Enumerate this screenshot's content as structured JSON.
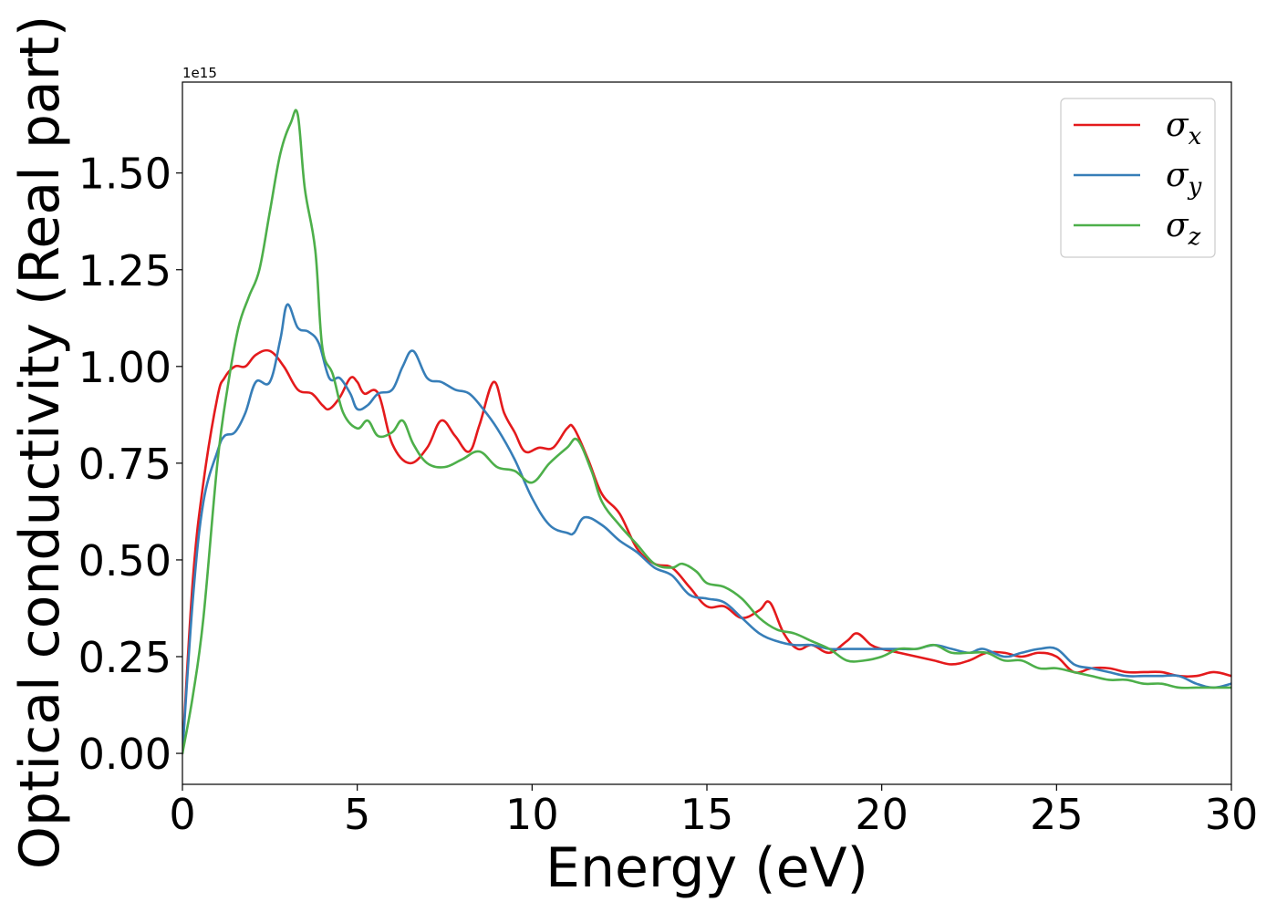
{
  "chart_data": {
    "type": "line",
    "title": "",
    "xlabel": "Energy (eV)",
    "ylabel": "Optical conductivity (Real part)",
    "y_offset_label": "1e15",
    "xlim": [
      0,
      30
    ],
    "ylim": [
      -0.08,
      1.735
    ],
    "xticks": [
      0,
      5,
      10,
      15,
      20,
      25,
      30
    ],
    "xtick_labels": [
      "0",
      "5",
      "10",
      "15",
      "20",
      "25",
      "30"
    ],
    "yticks": [
      0.0,
      0.25,
      0.5,
      0.75,
      1.0,
      1.25,
      1.5
    ],
    "ytick_labels": [
      "0.00",
      "0.25",
      "0.50",
      "0.75",
      "1.00",
      "1.25",
      "1.50"
    ],
    "grid": false,
    "legend_position": "top-right",
    "series": [
      {
        "name": "σx",
        "symbol": "σ",
        "subscript": "x",
        "color": "#e41a1c",
        "x": [
          0,
          0.3,
          0.6,
          1.0,
          1.2,
          1.5,
          1.8,
          2.1,
          2.5,
          2.9,
          3.3,
          3.7,
          4.0,
          4.2,
          4.5,
          4.8,
          5.0,
          5.2,
          5.6,
          6.0,
          6.5,
          7.0,
          7.4,
          7.8,
          8.2,
          8.5,
          8.9,
          9.2,
          9.5,
          9.8,
          10.2,
          10.6,
          11.0,
          11.2,
          11.6,
          12.0,
          12.5,
          13.0,
          13.5,
          14.0,
          14.5,
          15.0,
          15.5,
          16.0,
          16.5,
          16.8,
          17.2,
          17.6,
          18.0,
          18.5,
          19.0,
          19.3,
          19.7,
          20.0,
          20.5,
          21.0,
          21.5,
          22.0,
          22.5,
          23.0,
          23.5,
          24.0,
          24.5,
          25.0,
          25.5,
          26.0,
          26.5,
          27.0,
          27.5,
          28.0,
          28.5,
          29.0,
          29.5,
          30.0
        ],
        "y": [
          0.0,
          0.45,
          0.7,
          0.92,
          0.97,
          1.0,
          1.0,
          1.03,
          1.04,
          1.0,
          0.94,
          0.93,
          0.9,
          0.89,
          0.92,
          0.97,
          0.96,
          0.93,
          0.93,
          0.8,
          0.75,
          0.79,
          0.86,
          0.82,
          0.78,
          0.85,
          0.96,
          0.88,
          0.83,
          0.78,
          0.79,
          0.79,
          0.84,
          0.84,
          0.76,
          0.67,
          0.62,
          0.53,
          0.49,
          0.48,
          0.43,
          0.38,
          0.38,
          0.35,
          0.37,
          0.39,
          0.31,
          0.27,
          0.28,
          0.26,
          0.29,
          0.31,
          0.28,
          0.27,
          0.26,
          0.25,
          0.24,
          0.23,
          0.24,
          0.26,
          0.26,
          0.25,
          0.26,
          0.25,
          0.21,
          0.22,
          0.22,
          0.21,
          0.21,
          0.21,
          0.2,
          0.2,
          0.21,
          0.2
        ]
      },
      {
        "name": "σy",
        "symbol": "σ",
        "subscript": "y",
        "color": "#377eb8",
        "x": [
          0,
          0.3,
          0.6,
          1.0,
          1.2,
          1.5,
          1.8,
          2.1,
          2.5,
          2.8,
          3.0,
          3.3,
          3.6,
          3.9,
          4.2,
          4.5,
          4.8,
          5.0,
          5.3,
          5.6,
          6.0,
          6.3,
          6.6,
          7.0,
          7.4,
          7.8,
          8.2,
          8.6,
          9.0,
          9.5,
          10.0,
          10.5,
          11.0,
          11.2,
          11.5,
          12.0,
          12.5,
          13.0,
          13.5,
          14.0,
          14.5,
          15.0,
          15.5,
          16.0,
          16.5,
          17.0,
          17.5,
          18.0,
          18.5,
          19.0,
          19.5,
          20.0,
          20.5,
          21.0,
          21.5,
          22.0,
          22.5,
          22.9,
          23.5,
          24.0,
          24.5,
          25.0,
          25.5,
          26.0,
          26.5,
          27.0,
          27.5,
          28.0,
          28.5,
          29.0,
          29.5,
          30.0
        ],
        "y": [
          0.0,
          0.4,
          0.65,
          0.78,
          0.82,
          0.83,
          0.88,
          0.96,
          0.96,
          1.07,
          1.16,
          1.1,
          1.09,
          1.06,
          0.97,
          0.97,
          0.93,
          0.89,
          0.9,
          0.93,
          0.94,
          1.0,
          1.04,
          0.97,
          0.96,
          0.94,
          0.93,
          0.89,
          0.84,
          0.76,
          0.66,
          0.59,
          0.57,
          0.57,
          0.61,
          0.59,
          0.55,
          0.52,
          0.48,
          0.46,
          0.41,
          0.4,
          0.39,
          0.35,
          0.31,
          0.29,
          0.28,
          0.28,
          0.27,
          0.27,
          0.27,
          0.27,
          0.27,
          0.27,
          0.28,
          0.27,
          0.26,
          0.27,
          0.25,
          0.26,
          0.27,
          0.27,
          0.23,
          0.22,
          0.21,
          0.2,
          0.2,
          0.2,
          0.2,
          0.18,
          0.17,
          0.18
        ]
      },
      {
        "name": "σz",
        "symbol": "σ",
        "subscript": "z",
        "color": "#4daf4a",
        "x": [
          0,
          0.3,
          0.6,
          1.0,
          1.3,
          1.6,
          1.9,
          2.2,
          2.5,
          2.8,
          3.1,
          3.3,
          3.5,
          3.8,
          4.0,
          4.3,
          4.6,
          5.0,
          5.3,
          5.6,
          6.0,
          6.3,
          6.6,
          7.0,
          7.5,
          8.0,
          8.5,
          9.0,
          9.5,
          10.0,
          10.5,
          11.0,
          11.3,
          11.7,
          12.0,
          12.5,
          13.0,
          13.5,
          14.0,
          14.3,
          14.7,
          15.0,
          15.5,
          16.0,
          16.5,
          17.0,
          17.5,
          18.0,
          18.5,
          19.0,
          19.5,
          20.0,
          20.5,
          21.0,
          21.5,
          22.0,
          22.5,
          23.0,
          23.5,
          24.0,
          24.5,
          25.0,
          25.5,
          26.0,
          26.5,
          27.0,
          27.5,
          28.0,
          28.5,
          29.0,
          29.5,
          30.0
        ],
        "y": [
          0.0,
          0.15,
          0.35,
          0.75,
          0.95,
          1.1,
          1.18,
          1.25,
          1.4,
          1.55,
          1.63,
          1.65,
          1.46,
          1.3,
          1.05,
          0.98,
          0.88,
          0.84,
          0.86,
          0.82,
          0.83,
          0.86,
          0.8,
          0.75,
          0.74,
          0.76,
          0.78,
          0.74,
          0.73,
          0.7,
          0.75,
          0.79,
          0.81,
          0.73,
          0.65,
          0.59,
          0.54,
          0.49,
          0.48,
          0.49,
          0.47,
          0.44,
          0.43,
          0.4,
          0.35,
          0.32,
          0.31,
          0.29,
          0.27,
          0.24,
          0.24,
          0.25,
          0.27,
          0.27,
          0.28,
          0.26,
          0.26,
          0.26,
          0.24,
          0.24,
          0.22,
          0.22,
          0.21,
          0.2,
          0.19,
          0.19,
          0.18,
          0.18,
          0.17,
          0.17,
          0.17,
          0.17
        ]
      }
    ]
  }
}
